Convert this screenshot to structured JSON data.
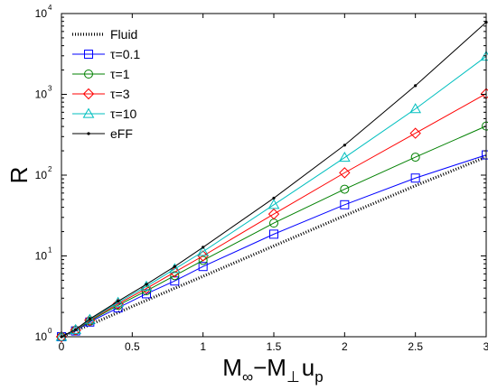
{
  "chart_data": {
    "type": "line",
    "title": "",
    "xlabel": {
      "main1": "M",
      "sub1": "∞",
      "dash": "−M",
      "sub2": "⊥",
      "main2": "u",
      "sub3": "p"
    },
    "ylabel": "R",
    "xlim": [
      0,
      3
    ],
    "ylim": [
      1,
      10000
    ],
    "yscale": "log",
    "grid": false,
    "legend_position": "top-left",
    "x_ticks": [
      "0",
      "0.5",
      "1",
      "1.5",
      "2",
      "2.5",
      "3"
    ],
    "y_ticks": [
      {
        "base": "10",
        "exp": "0"
      },
      {
        "base": "10",
        "exp": "1"
      },
      {
        "base": "10",
        "exp": "2"
      },
      {
        "base": "10",
        "exp": "3"
      },
      {
        "base": "10",
        "exp": "4"
      }
    ],
    "series": [
      {
        "name": "Fluid",
        "color": "#000000",
        "style": "dotted",
        "marker": "none",
        "x": [
          0,
          0.1,
          0.2,
          0.4,
          0.6,
          0.8,
          1,
          1.5,
          2,
          2.5,
          3
        ],
        "y": [
          1,
          1.19,
          1.41,
          1.99,
          2.82,
          3.98,
          5.6,
          13.3,
          31.5,
          74,
          168
        ]
      },
      {
        "name": "τ=0.1",
        "color": "#0000ff",
        "style": "solid",
        "marker": "square",
        "x": [
          0,
          0.1,
          0.2,
          0.4,
          0.6,
          0.8,
          1,
          1.5,
          2,
          2.5,
          3
        ],
        "y": [
          1,
          1.18,
          1.52,
          2.28,
          3.4,
          4.9,
          7.4,
          18.6,
          43,
          92,
          178
        ]
      },
      {
        "name": "τ=1",
        "color": "#008000",
        "style": "solid",
        "marker": "circle",
        "x": [
          0,
          0.1,
          0.2,
          0.4,
          0.6,
          0.8,
          1,
          1.5,
          2,
          2.5,
          3
        ],
        "y": [
          1,
          1.2,
          1.56,
          2.45,
          3.7,
          5.7,
          8.8,
          25.5,
          67,
          167,
          405
        ]
      },
      {
        "name": "τ=3",
        "color": "#ff0000",
        "style": "solid",
        "marker": "diamond",
        "x": [
          0,
          0.1,
          0.2,
          0.4,
          0.6,
          0.8,
          1,
          1.5,
          2,
          2.5,
          3
        ],
        "y": [
          1,
          1.21,
          1.6,
          2.55,
          3.95,
          6.3,
          10,
          33,
          107,
          330,
          1020
        ]
      },
      {
        "name": "τ=10",
        "color": "#00bfbf",
        "style": "solid",
        "marker": "triangle",
        "x": [
          0,
          0.1,
          0.2,
          0.4,
          0.6,
          0.8,
          1,
          1.5,
          2,
          2.5,
          3
        ],
        "y": [
          1,
          1.22,
          1.63,
          2.65,
          4.2,
          6.9,
          11.3,
          43,
          165,
          660,
          2950
        ]
      },
      {
        "name": "eFF",
        "color": "#000000",
        "style": "solid",
        "marker": "dot",
        "x": [
          0,
          0.1,
          0.2,
          0.4,
          0.6,
          0.8,
          1,
          1.5,
          2,
          2.5,
          3
        ],
        "y": [
          1,
          1.23,
          1.66,
          2.75,
          4.45,
          7.4,
          12.8,
          52,
          235,
          1280,
          7800
        ]
      }
    ]
  }
}
